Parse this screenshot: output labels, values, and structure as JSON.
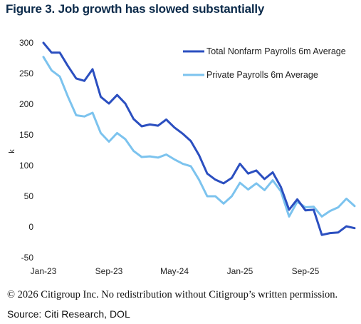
{
  "title": "Figure 3. Job growth has slowed substantially",
  "copyright": "© 2026 Citigroup Inc. No redistribution without Citigroup’s written permission.",
  "source": "Source: Citi Research, DOL",
  "chart_data": {
    "type": "line",
    "title": "Figure 3. Job growth has slowed substantially",
    "ylabel": "k",
    "xlabel": "",
    "ylim": [
      -50,
      300
    ],
    "yticks": [
      -50,
      0,
      50,
      100,
      150,
      200,
      250,
      300
    ],
    "xtick_labels": [
      "Jan-23",
      "Sep-23",
      "May-24",
      "Jan-25",
      "Sep-25"
    ],
    "xtick_positions": [
      "2023-01",
      "2023-09",
      "2024-05",
      "2025-01",
      "2025-09"
    ],
    "x": [
      "2023-01",
      "2023-02",
      "2023-03",
      "2023-04",
      "2023-05",
      "2023-06",
      "2023-07",
      "2023-08",
      "2023-09",
      "2023-10",
      "2023-11",
      "2023-12",
      "2024-01",
      "2024-02",
      "2024-03",
      "2024-04",
      "2024-05",
      "2024-06",
      "2024-07",
      "2024-08",
      "2024-09",
      "2024-10",
      "2024-11",
      "2024-12",
      "2025-01",
      "2025-02",
      "2025-03",
      "2025-04",
      "2025-05",
      "2025-06",
      "2025-07",
      "2025-08",
      "2025-09",
      "2025-10",
      "2025-11",
      "2025-12",
      "2026-01",
      "2026-02",
      "2026-03"
    ],
    "legend_position": "top-right",
    "grid": false,
    "series": [
      {
        "name": "Total Nonfarm Payrolls 6m Average",
        "color": "#2b4fc0",
        "values": [
          300,
          284,
          284,
          262,
          242,
          238,
          257,
          212,
          201,
          215,
          201,
          176,
          164,
          167,
          165,
          175,
          162,
          152,
          140,
          117,
          87,
          77,
          71,
          80,
          103,
          87,
          92,
          78,
          89,
          65,
          28,
          45,
          27,
          28,
          -13,
          -10,
          -9,
          1,
          -2
        ]
      },
      {
        "name": "Private Payrolls 6m Average",
        "color": "#7cc3ee",
        "values": [
          277,
          255,
          245,
          212,
          182,
          180,
          186,
          153,
          139,
          153,
          143,
          124,
          114,
          115,
          113,
          118,
          110,
          103,
          99,
          77,
          50,
          50,
          38,
          50,
          72,
          61,
          71,
          60,
          76,
          58,
          17,
          41,
          32,
          33,
          17,
          26,
          32,
          46,
          34
        ]
      }
    ]
  }
}
